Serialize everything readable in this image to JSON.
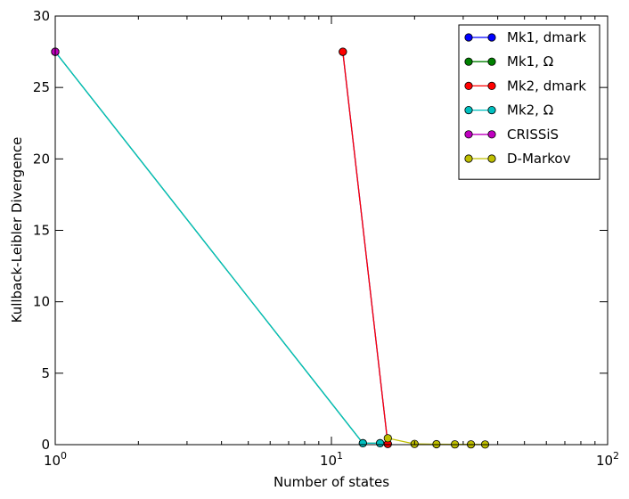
{
  "chart_data": {
    "type": "line",
    "title": "",
    "xlabel": "Number of states",
    "ylabel": "Kullback-Leibler Divergence",
    "xscale": "log",
    "xlim": [
      1,
      100
    ],
    "ylim": [
      0,
      30
    ],
    "grid": false,
    "legend_position": "top-right",
    "x_ticks": [
      {
        "value": 1,
        "base": "10",
        "exp": "0"
      },
      {
        "value": 10,
        "base": "10",
        "exp": "1"
      },
      {
        "value": 100,
        "base": "10",
        "exp": "2"
      }
    ],
    "y_ticks": [
      0,
      5,
      10,
      15,
      20,
      25,
      30
    ],
    "series": [
      {
        "name": "Mk1, dmark",
        "color": "#0000ff",
        "x": [
          11,
          16
        ],
        "y": [
          27.5,
          0.05
        ]
      },
      {
        "name": "Mk1, Ω",
        "color": "#008000",
        "x": [
          1,
          13,
          15
        ],
        "y": [
          27.5,
          0.1,
          0.1
        ]
      },
      {
        "name": "Mk2, dmark",
        "color": "#ff0000",
        "x": [
          11,
          16
        ],
        "y": [
          27.5,
          0.05
        ]
      },
      {
        "name": "Mk2, Ω",
        "color": "#00bfbf",
        "x": [
          1,
          13,
          15
        ],
        "y": [
          27.5,
          0.1,
          0.1
        ]
      },
      {
        "name": "CRISSiS",
        "color": "#bf00bf",
        "x": [
          1
        ],
        "y": [
          27.5
        ]
      },
      {
        "name": "D-Markov",
        "color": "#bfbf00",
        "x": [
          16,
          20,
          24,
          28,
          32,
          36
        ],
        "y": [
          0.45,
          0.05,
          0.03,
          0.02,
          0.02,
          0.01
        ]
      }
    ]
  }
}
